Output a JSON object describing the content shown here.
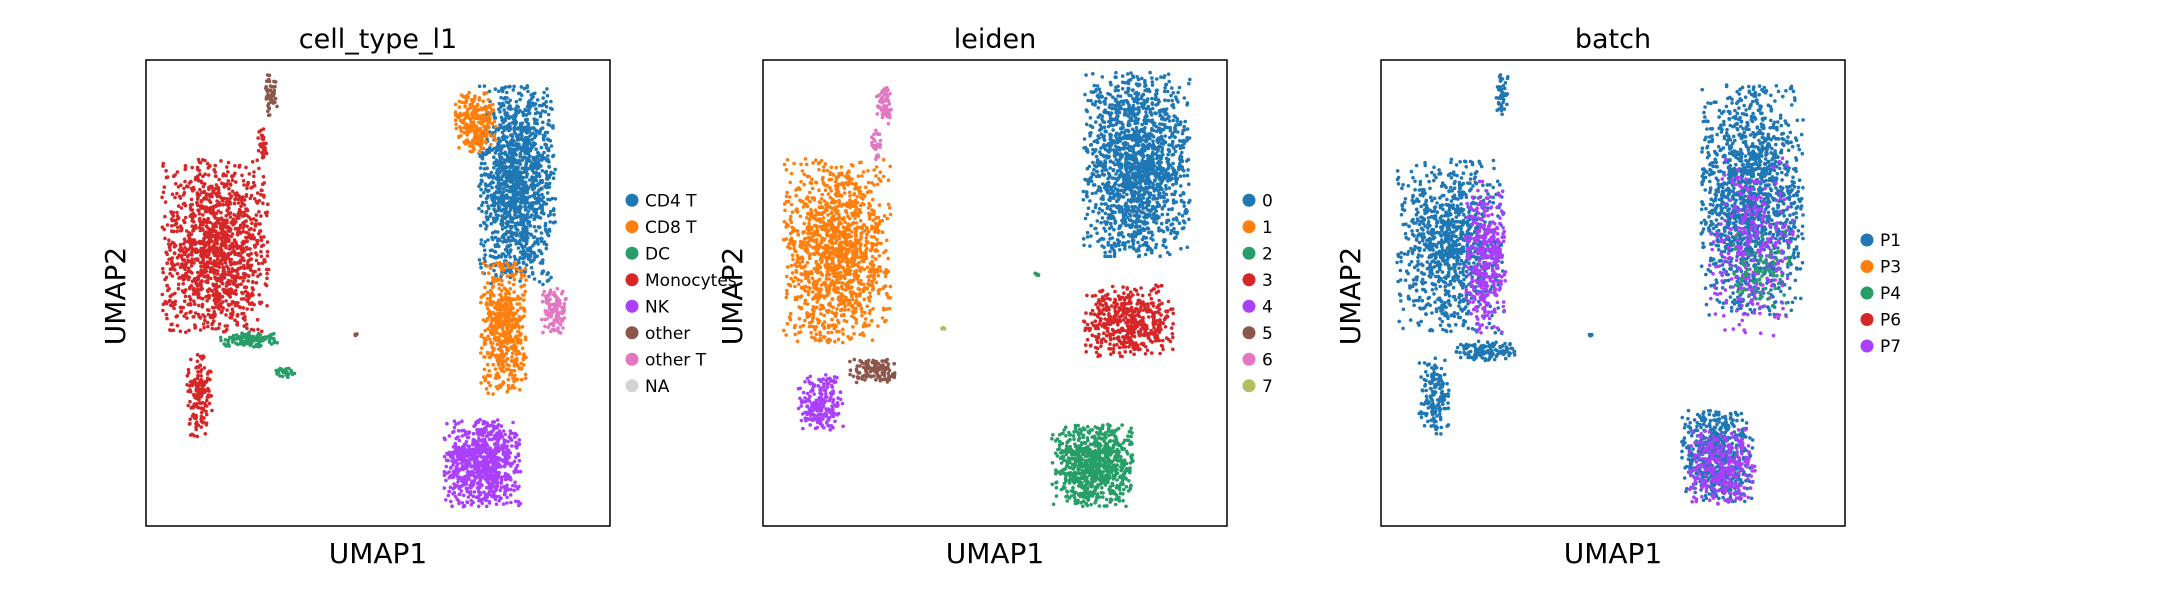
{
  "chart_data": [
    {
      "type": "scatter",
      "title": "cell_type_l1",
      "xlabel": "UMAP1",
      "ylabel": "UMAP2",
      "grid": false,
      "legend_placement": "right",
      "xlim": [
        -10,
        10
      ],
      "ylim": [
        -10,
        10
      ],
      "legend": [
        {
          "label": "CD4 T",
          "color": "#1f77b4"
        },
        {
          "label": "CD8 T",
          "color": "#ff7f0e"
        },
        {
          "label": "DC",
          "color": "#279e68"
        },
        {
          "label": "Monocytes",
          "color": "#d62728"
        },
        {
          "label": "NK",
          "color": "#aa40fc"
        },
        {
          "label": "other",
          "color": "#8c564b"
        },
        {
          "label": "other T",
          "color": "#e377c2"
        },
        {
          "label": "NA",
          "color": "#d3d3d3"
        }
      ],
      "regions": [
        {
          "cat": 3,
          "cx": -7.0,
          "cy": 2.0,
          "rx": 2.1,
          "ry": 3.4,
          "n": 1300
        },
        {
          "cat": 3,
          "cx": -7.7,
          "cy": -4.4,
          "rx": 0.5,
          "ry": 1.6,
          "n": 160
        },
        {
          "cat": 5,
          "cx": -4.6,
          "cy": 8.5,
          "rx": 0.25,
          "ry": 0.8,
          "n": 50
        },
        {
          "cat": 3,
          "cx": -5.0,
          "cy": 6.4,
          "rx": 0.2,
          "ry": 0.7,
          "n": 30
        },
        {
          "cat": 2,
          "cx": -5.5,
          "cy": -2.0,
          "rx": 1.2,
          "ry": 0.3,
          "n": 120
        },
        {
          "cat": 2,
          "cx": -4.0,
          "cy": -3.4,
          "rx": 0.4,
          "ry": 0.2,
          "n": 30
        },
        {
          "cat": 0,
          "cx": 6.0,
          "cy": 4.6,
          "rx": 1.5,
          "ry": 3.9,
          "n": 1400
        },
        {
          "cat": 1,
          "cx": 4.2,
          "cy": 7.3,
          "rx": 0.8,
          "ry": 1.2,
          "n": 260
        },
        {
          "cat": 1,
          "cx": 5.4,
          "cy": -1.5,
          "rx": 0.9,
          "ry": 2.6,
          "n": 520
        },
        {
          "cat": 6,
          "cx": 7.6,
          "cy": -0.8,
          "rx": 0.5,
          "ry": 0.9,
          "n": 120
        },
        {
          "cat": 4,
          "cx": 4.5,
          "cy": -7.3,
          "rx": 1.5,
          "ry": 1.7,
          "n": 800
        },
        {
          "cat": 5,
          "cx": -1.0,
          "cy": -1.8,
          "rx": 0.1,
          "ry": 0.05,
          "n": 6
        }
      ]
    },
    {
      "type": "scatter",
      "title": "leiden",
      "xlabel": "UMAP1",
      "ylabel": "UMAP2",
      "grid": false,
      "legend_placement": "right",
      "xlim": [
        -10,
        10
      ],
      "ylim": [
        -10,
        10
      ],
      "legend": [
        {
          "label": "0",
          "color": "#1f77b4"
        },
        {
          "label": "1",
          "color": "#ff7f0e"
        },
        {
          "label": "2",
          "color": "#279e68"
        },
        {
          "label": "3",
          "color": "#d62728"
        },
        {
          "label": "4",
          "color": "#aa40fc"
        },
        {
          "label": "5",
          "color": "#8c564b"
        },
        {
          "label": "6",
          "color": "#e377c2"
        },
        {
          "label": "7",
          "color": "#b5bd61"
        }
      ],
      "regions": [
        {
          "cat": 1,
          "cx": -6.8,
          "cy": 1.8,
          "rx": 2.1,
          "ry": 3.6,
          "n": 1300
        },
        {
          "cat": 4,
          "cx": -7.5,
          "cy": -4.7,
          "rx": 0.9,
          "ry": 1.1,
          "n": 220
        },
        {
          "cat": 5,
          "cx": -5.3,
          "cy": -3.3,
          "rx": 0.9,
          "ry": 0.5,
          "n": 120
        },
        {
          "cat": 6,
          "cx": -4.8,
          "cy": 8.1,
          "rx": 0.3,
          "ry": 0.8,
          "n": 60
        },
        {
          "cat": 6,
          "cx": -5.1,
          "cy": 6.4,
          "rx": 0.2,
          "ry": 0.6,
          "n": 30
        },
        {
          "cat": 0,
          "cx": 6.1,
          "cy": 5.5,
          "rx": 2.1,
          "ry": 3.6,
          "n": 1600
        },
        {
          "cat": 3,
          "cx": 5.8,
          "cy": -1.2,
          "rx": 1.8,
          "ry": 1.4,
          "n": 500
        },
        {
          "cat": 2,
          "cx": 4.2,
          "cy": -7.4,
          "rx": 1.6,
          "ry": 1.6,
          "n": 800
        },
        {
          "cat": 7,
          "cx": -2.2,
          "cy": -1.5,
          "rx": 0.1,
          "ry": 0.05,
          "n": 6
        },
        {
          "cat": 2,
          "cx": 1.8,
          "cy": 0.8,
          "rx": 0.1,
          "ry": 0.1,
          "n": 6
        }
      ]
    },
    {
      "type": "scatter",
      "title": "batch",
      "xlabel": "UMAP1",
      "ylabel": "UMAP2",
      "grid": false,
      "legend_placement": "right",
      "xlim": [
        -10,
        10
      ],
      "ylim": [
        -10,
        10
      ],
      "legend": [
        {
          "label": "P1",
          "color": "#1f77b4"
        },
        {
          "label": "P3",
          "color": "#ff7f0e"
        },
        {
          "label": "P4",
          "color": "#279e68"
        },
        {
          "label": "P6",
          "color": "#d62728"
        },
        {
          "label": "P7",
          "color": "#aa40fc"
        }
      ],
      "regions": [
        {
          "cat": 0,
          "cx": -7.0,
          "cy": 2.0,
          "rx": 2.1,
          "ry": 3.4,
          "n": 1000
        },
        {
          "cat": 4,
          "cx": -5.5,
          "cy": 1.5,
          "rx": 0.8,
          "ry": 3.0,
          "n": 350
        },
        {
          "cat": 0,
          "cx": -7.7,
          "cy": -4.4,
          "rx": 0.6,
          "ry": 1.5,
          "n": 160
        },
        {
          "cat": 0,
          "cx": -4.8,
          "cy": 8.5,
          "rx": 0.25,
          "ry": 0.8,
          "n": 50
        },
        {
          "cat": 0,
          "cx": -5.5,
          "cy": -2.5,
          "rx": 1.2,
          "ry": 0.4,
          "n": 120
        },
        {
          "cat": 0,
          "cx": 6.0,
          "cy": 4.0,
          "rx": 2.0,
          "ry": 4.5,
          "n": 1500
        },
        {
          "cat": 4,
          "cx": 6.0,
          "cy": 2.0,
          "rx": 1.7,
          "ry": 3.5,
          "n": 300
        },
        {
          "cat": 2,
          "cx": 6.3,
          "cy": 1.0,
          "rx": 1.2,
          "ry": 1.5,
          "n": 70
        },
        {
          "cat": 0,
          "cx": 4.5,
          "cy": -7.0,
          "rx": 1.4,
          "ry": 1.8,
          "n": 600
        },
        {
          "cat": 4,
          "cx": 4.7,
          "cy": -7.5,
          "rx": 1.3,
          "ry": 1.5,
          "n": 300
        },
        {
          "cat": 0,
          "cx": -1.0,
          "cy": -1.8,
          "rx": 0.1,
          "ry": 0.05,
          "n": 6
        }
      ]
    }
  ]
}
